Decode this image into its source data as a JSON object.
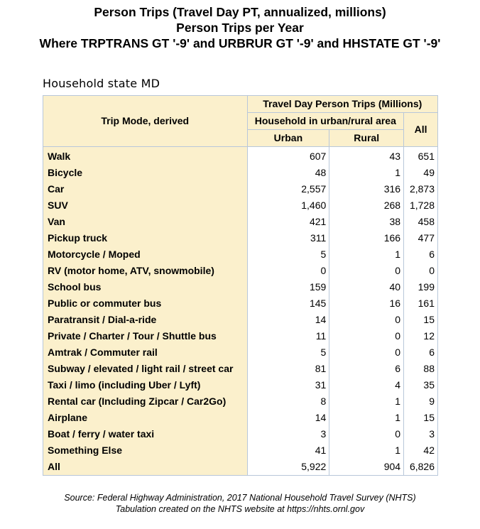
{
  "titles": {
    "line1": "Person Trips (Travel Day PT, annualized, millions)",
    "line2": "Person Trips per Year",
    "line3": "Where TRPTRANS GT '-9' and URBRUR GT '-9' and HHSTATE GT '-9'"
  },
  "caption": "Household state MD",
  "table": {
    "corner_label": "Trip Mode, derived",
    "top_header": "Travel Day Person Trips (Millions)",
    "group_header": "Household in urban/rural area",
    "col_urban": "Urban",
    "col_rural": "Rural",
    "col_all": "All",
    "rows": [
      {
        "label": "Walk",
        "urban": "607",
        "rural": "43",
        "all": "651"
      },
      {
        "label": "Bicycle",
        "urban": "48",
        "rural": "1",
        "all": "49"
      },
      {
        "label": "Car",
        "urban": "2,557",
        "rural": "316",
        "all": "2,873"
      },
      {
        "label": "SUV",
        "urban": "1,460",
        "rural": "268",
        "all": "1,728"
      },
      {
        "label": "Van",
        "urban": "421",
        "rural": "38",
        "all": "458"
      },
      {
        "label": "Pickup truck",
        "urban": "311",
        "rural": "166",
        "all": "477"
      },
      {
        "label": "Motorcycle / Moped",
        "urban": "5",
        "rural": "1",
        "all": "6"
      },
      {
        "label": "RV (motor home, ATV, snowmobile)",
        "urban": "0",
        "rural": "0",
        "all": "0"
      },
      {
        "label": "School bus",
        "urban": "159",
        "rural": "40",
        "all": "199"
      },
      {
        "label": "Public or commuter bus",
        "urban": "145",
        "rural": "16",
        "all": "161"
      },
      {
        "label": "Paratransit / Dial-a-ride",
        "urban": "14",
        "rural": "0",
        "all": "15"
      },
      {
        "label": "Private / Charter / Tour / Shuttle bus",
        "urban": "11",
        "rural": "0",
        "all": "12"
      },
      {
        "label": "Amtrak / Commuter rail",
        "urban": "5",
        "rural": "0",
        "all": "6"
      },
      {
        "label": "Subway / elevated / light rail / street car",
        "urban": "81",
        "rural": "6",
        "all": "88"
      },
      {
        "label": "Taxi / limo (including Uber / Lyft)",
        "urban": "31",
        "rural": "4",
        "all": "35"
      },
      {
        "label": "Rental car (Including Zipcar / Car2Go)",
        "urban": "8",
        "rural": "1",
        "all": "9"
      },
      {
        "label": "Airplane",
        "urban": "14",
        "rural": "1",
        "all": "15"
      },
      {
        "label": "Boat / ferry / water taxi",
        "urban": "3",
        "rural": "0",
        "all": "3"
      },
      {
        "label": "Something Else",
        "urban": "41",
        "rural": "1",
        "all": "42"
      },
      {
        "label": "All",
        "urban": "5,922",
        "rural": "904",
        "all": "6,826"
      }
    ]
  },
  "footer": {
    "line1": "Source: Federal Highway Administration, 2017 National Household Travel Survey (NHTS)",
    "line2": "Tabulation created on the NHTS website at https://nhts.ornl.gov"
  }
}
